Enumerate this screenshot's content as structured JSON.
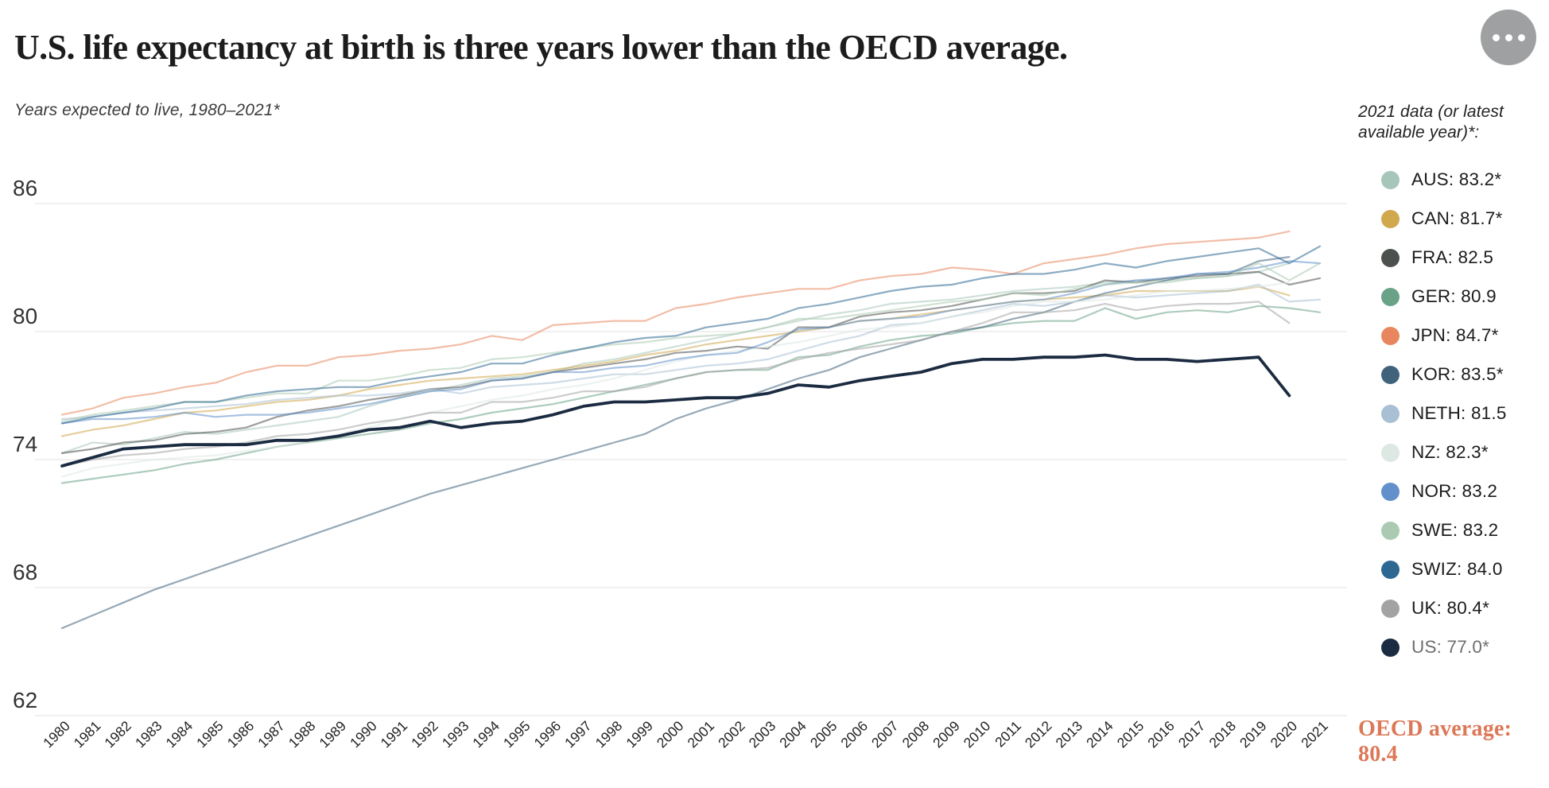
{
  "header": {
    "title": "U.S. life expectancy at birth is three years lower than the OECD average.",
    "menu_icon": "ellipsis"
  },
  "subtitle": "Years expected to live, 1980–2021*",
  "legend": {
    "heading": "2021 data (or latest available year)*:",
    "items": [
      {
        "code": "AUS",
        "label": "AUS: 83.2*",
        "color": "#a7c6ba",
        "muted": false
      },
      {
        "code": "CAN",
        "label": "CAN: 81.7*",
        "color": "#d0a84d",
        "muted": false
      },
      {
        "code": "FRA",
        "label": "FRA: 82.5",
        "color": "#4c514e",
        "muted": false
      },
      {
        "code": "GER",
        "label": "GER: 80.9",
        "color": "#69a287",
        "muted": false
      },
      {
        "code": "JPN",
        "label": "JPN: 84.7*",
        "color": "#e8875f",
        "muted": false
      },
      {
        "code": "KOR",
        "label": "KOR: 83.5*",
        "color": "#40637b",
        "muted": false
      },
      {
        "code": "NETH",
        "label": "NETH: 81.5",
        "color": "#a8bfd4",
        "muted": false
      },
      {
        "code": "NZ",
        "label": "NZ: 82.3*",
        "color": "#dde8e3",
        "muted": false
      },
      {
        "code": "NOR",
        "label": "NOR: 83.2",
        "color": "#6190ca",
        "muted": false
      },
      {
        "code": "SWE",
        "label": "SWE: 83.2",
        "color": "#abcab1",
        "muted": false
      },
      {
        "code": "SWIZ",
        "label": "SWIZ: 84.0",
        "color": "#2d6892",
        "muted": false
      },
      {
        "code": "UK",
        "label": "UK: 80.4*",
        "color": "#a3a3a3",
        "muted": false
      },
      {
        "code": "US",
        "label": "US: 77.0*",
        "color": "#1b2b41",
        "muted": true
      }
    ]
  },
  "footnote": {
    "oecd_note": "OECD average: 80.4",
    "accent_color": "#dc7857"
  },
  "chart_data": {
    "type": "line",
    "title": "U.S. life expectancy at birth is three years lower than the OECD average.",
    "subtitle": "Years expected to live, 1980–2021*",
    "xlabel": "",
    "ylabel": "Years expected to live",
    "x_start": 1980,
    "x_end": 2021,
    "xlim": [
      1980,
      2021
    ],
    "yticks": [
      62,
      68,
      74,
      80,
      86
    ],
    "ylim": [
      61.5,
      86.5
    ],
    "grid": "horizontal-only",
    "legend_position": "right",
    "x": [
      1980,
      1981,
      1982,
      1983,
      1984,
      1985,
      1986,
      1987,
      1988,
      1989,
      1990,
      1991,
      1992,
      1993,
      1994,
      1995,
      1996,
      1997,
      1998,
      1999,
      2000,
      2001,
      2002,
      2003,
      2004,
      2005,
      2006,
      2007,
      2008,
      2009,
      2010,
      2011,
      2012,
      2013,
      2014,
      2015,
      2016,
      2017,
      2018,
      2019,
      2020,
      2021
    ],
    "oecd_average_2021": 80.4,
    "series": [
      {
        "name": "AUS",
        "color": "#a7c6ba",
        "final_value": "83.2*",
        "values": [
          74.3,
          74.8,
          74.7,
          75.0,
          75.3,
          75.2,
          75.4,
          75.6,
          75.8,
          76.0,
          76.5,
          76.9,
          77.2,
          77.5,
          77.8,
          77.9,
          78.1,
          78.5,
          78.7,
          79.0,
          79.3,
          79.6,
          79.9,
          80.2,
          80.5,
          80.8,
          81.0,
          81.3,
          81.4,
          81.5,
          81.7,
          81.9,
          82.0,
          82.1,
          82.3,
          82.4,
          82.4,
          82.5,
          82.6,
          82.8,
          83.2,
          null
        ]
      },
      {
        "name": "CAN",
        "color": "#d0a84d",
        "final_value": "81.7*",
        "values": [
          75.1,
          75.4,
          75.6,
          75.9,
          76.2,
          76.3,
          76.5,
          76.7,
          76.8,
          77.0,
          77.3,
          77.5,
          77.7,
          77.8,
          77.9,
          78.0,
          78.2,
          78.4,
          78.6,
          78.9,
          79.1,
          79.4,
          79.6,
          79.8,
          80.0,
          80.2,
          80.5,
          80.6,
          80.8,
          81.0,
          81.2,
          81.4,
          81.5,
          81.6,
          81.7,
          81.9,
          81.9,
          81.9,
          81.9,
          82.1,
          81.7,
          null
        ]
      },
      {
        "name": "FRA",
        "color": "#4c514e",
        "final_value": "82.5",
        "values": [
          74.3,
          74.5,
          74.8,
          74.9,
          75.2,
          75.3,
          75.5,
          76.0,
          76.3,
          76.5,
          76.8,
          77.0,
          77.3,
          77.4,
          77.7,
          77.8,
          78.1,
          78.3,
          78.5,
          78.7,
          79.0,
          79.1,
          79.3,
          79.2,
          80.2,
          80.2,
          80.7,
          80.9,
          81.0,
          81.2,
          81.5,
          81.8,
          81.8,
          81.9,
          82.4,
          82.3,
          82.5,
          82.6,
          82.7,
          82.8,
          82.2,
          82.5
        ]
      },
      {
        "name": "GER",
        "color": "#69a287",
        "final_value": "80.9",
        "values": [
          72.9,
          73.1,
          73.3,
          73.5,
          73.8,
          74.0,
          74.3,
          74.6,
          74.8,
          75.0,
          75.2,
          75.4,
          75.7,
          75.9,
          76.2,
          76.4,
          76.6,
          76.9,
          77.2,
          77.5,
          77.8,
          78.1,
          78.2,
          78.2,
          78.8,
          78.9,
          79.3,
          79.6,
          79.8,
          79.9,
          80.2,
          80.4,
          80.5,
          80.5,
          81.1,
          80.6,
          80.9,
          81.0,
          80.9,
          81.2,
          81.1,
          80.9
        ]
      },
      {
        "name": "JPN",
        "color": "#e8875f",
        "final_value": "84.7*",
        "values": [
          76.1,
          76.4,
          76.9,
          77.1,
          77.4,
          77.6,
          78.1,
          78.4,
          78.4,
          78.8,
          78.9,
          79.1,
          79.2,
          79.4,
          79.8,
          79.6,
          80.3,
          80.4,
          80.5,
          80.5,
          81.1,
          81.3,
          81.6,
          81.8,
          82.0,
          82.0,
          82.4,
          82.6,
          82.7,
          83.0,
          82.9,
          82.7,
          83.2,
          83.4,
          83.6,
          83.9,
          84.1,
          84.2,
          84.3,
          84.4,
          84.7,
          null
        ]
      },
      {
        "name": "KOR",
        "color": "#40637b",
        "final_value": "83.5*",
        "values": [
          66.1,
          66.7,
          67.3,
          67.9,
          68.4,
          68.9,
          69.4,
          69.9,
          70.4,
          70.9,
          71.4,
          71.9,
          72.4,
          72.8,
          73.2,
          73.6,
          74.0,
          74.4,
          74.8,
          75.2,
          75.9,
          76.4,
          76.8,
          77.3,
          77.8,
          78.2,
          78.8,
          79.2,
          79.6,
          80.0,
          80.2,
          80.6,
          80.9,
          81.4,
          81.8,
          82.1,
          82.4,
          82.7,
          82.7,
          83.3,
          83.5,
          null
        ]
      },
      {
        "name": "NETH",
        "color": "#a8bfd4",
        "final_value": "81.5",
        "values": [
          75.9,
          76.0,
          76.2,
          76.3,
          76.4,
          76.5,
          76.6,
          76.8,
          76.9,
          77.0,
          77.0,
          77.1,
          77.3,
          77.1,
          77.4,
          77.5,
          77.6,
          77.8,
          78.0,
          78.0,
          78.2,
          78.4,
          78.5,
          78.7,
          79.1,
          79.5,
          79.8,
          80.3,
          80.4,
          80.7,
          81.0,
          81.3,
          81.2,
          81.4,
          81.7,
          81.6,
          81.7,
          81.8,
          81.9,
          82.2,
          81.4,
          81.5
        ]
      },
      {
        "name": "NZ",
        "color": "#dde8e3",
        "final_value": "82.3*",
        "values": [
          73.2,
          73.6,
          73.8,
          74.0,
          74.1,
          74.2,
          74.4,
          74.6,
          74.8,
          75.2,
          75.5,
          75.9,
          76.2,
          76.5,
          76.8,
          77.0,
          77.3,
          77.5,
          77.8,
          78.2,
          78.6,
          78.9,
          79.1,
          79.3,
          79.5,
          79.8,
          80.1,
          80.2,
          80.4,
          80.7,
          80.9,
          81.2,
          81.4,
          81.4,
          81.5,
          81.7,
          81.9,
          81.9,
          82.0,
          82.1,
          82.3,
          null
        ]
      },
      {
        "name": "NOR",
        "color": "#6190ca",
        "final_value": "83.2",
        "values": [
          75.7,
          75.9,
          75.9,
          76.0,
          76.2,
          76.0,
          76.1,
          76.1,
          76.2,
          76.4,
          76.6,
          76.9,
          77.2,
          77.3,
          77.7,
          77.8,
          78.1,
          78.1,
          78.3,
          78.4,
          78.7,
          78.9,
          79.0,
          79.5,
          80.1,
          80.2,
          80.5,
          80.6,
          80.7,
          81.0,
          81.2,
          81.4,
          81.5,
          81.8,
          82.2,
          82.4,
          82.5,
          82.7,
          82.8,
          83.0,
          83.3,
          83.2
        ]
      },
      {
        "name": "SWE",
        "color": "#abcab1",
        "final_value": "83.2",
        "values": [
          75.8,
          76.1,
          76.3,
          76.5,
          76.7,
          76.7,
          76.9,
          77.1,
          77.1,
          77.7,
          77.7,
          77.9,
          78.2,
          78.3,
          78.7,
          78.8,
          79.0,
          79.2,
          79.4,
          79.5,
          79.7,
          79.8,
          79.9,
          80.2,
          80.6,
          80.6,
          80.8,
          81.0,
          81.2,
          81.4,
          81.5,
          81.8,
          81.7,
          82.0,
          82.2,
          82.3,
          82.3,
          82.5,
          82.6,
          83.2,
          82.4,
          83.2
        ]
      },
      {
        "name": "SWIZ",
        "color": "#2d6892",
        "final_value": "84.0",
        "values": [
          75.7,
          76.0,
          76.2,
          76.4,
          76.7,
          76.7,
          77.0,
          77.2,
          77.3,
          77.4,
          77.4,
          77.7,
          77.9,
          78.1,
          78.5,
          78.5,
          78.9,
          79.2,
          79.5,
          79.7,
          79.8,
          80.2,
          80.4,
          80.6,
          81.1,
          81.3,
          81.6,
          81.9,
          82.1,
          82.2,
          82.5,
          82.7,
          82.7,
          82.9,
          83.2,
          83.0,
          83.3,
          83.5,
          83.7,
          83.9,
          83.2,
          84.0
        ]
      },
      {
        "name": "UK",
        "color": "#a3a3a3",
        "final_value": "80.4*",
        "values": [
          73.7,
          74.0,
          74.2,
          74.3,
          74.5,
          74.6,
          74.8,
          75.1,
          75.2,
          75.4,
          75.7,
          75.9,
          76.2,
          76.2,
          76.7,
          76.7,
          76.9,
          77.2,
          77.2,
          77.4,
          77.8,
          78.1,
          78.2,
          78.3,
          78.7,
          79.0,
          79.2,
          79.4,
          79.6,
          80.0,
          80.4,
          80.9,
          80.9,
          81.0,
          81.3,
          81.0,
          81.2,
          81.3,
          81.3,
          81.4,
          80.4,
          null
        ]
      },
      {
        "name": "US",
        "color": "#1b2b41",
        "final_value": "77.0*",
        "emphasis": true,
        "values": [
          73.7,
          74.1,
          74.5,
          74.6,
          74.7,
          74.7,
          74.7,
          74.9,
          74.9,
          75.1,
          75.4,
          75.5,
          75.8,
          75.5,
          75.7,
          75.8,
          76.1,
          76.5,
          76.7,
          76.7,
          76.8,
          76.9,
          76.9,
          77.1,
          77.5,
          77.4,
          77.7,
          77.9,
          78.1,
          78.5,
          78.7,
          78.7,
          78.8,
          78.8,
          78.9,
          78.7,
          78.7,
          78.6,
          78.7,
          78.8,
          77.0,
          null
        ]
      }
    ]
  }
}
